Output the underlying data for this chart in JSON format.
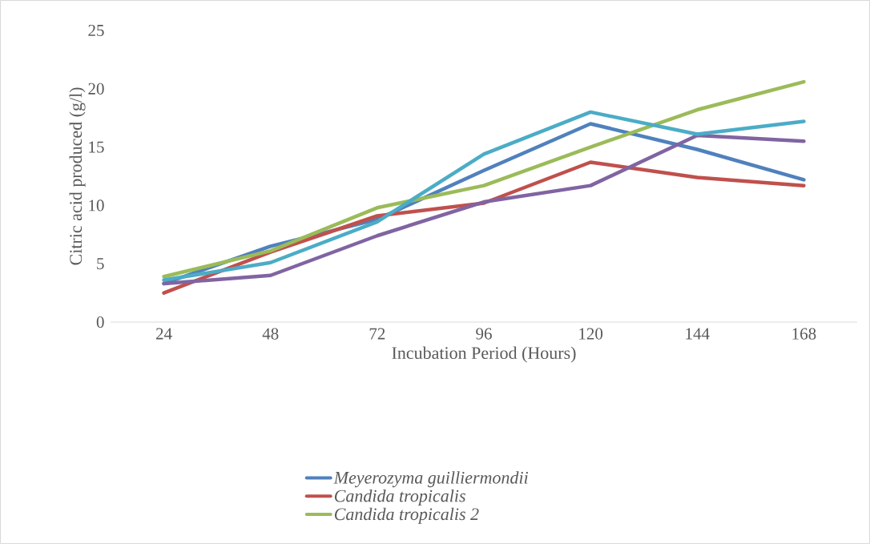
{
  "chart_data": {
    "type": "line",
    "xlabel": "Incubation Period (Hours)",
    "ylabel": "Citric acid produced (g/l)",
    "categories": [
      "24",
      "48",
      "72",
      "96",
      "120",
      "144",
      "168"
    ],
    "series": [
      {
        "name": "Meyerozyma guilliermondii",
        "color": "#4f81bd",
        "values": [
          3.3,
          6.5,
          8.8,
          13.0,
          17.0,
          14.8,
          12.2
        ]
      },
      {
        "name": "Candida tropicalis",
        "color": "#c0504d",
        "values": [
          2.5,
          6.0,
          9.1,
          10.2,
          13.7,
          12.4,
          11.7
        ]
      },
      {
        "name": "Candida tropicalis 2",
        "color": "#9bbb59",
        "values": [
          3.9,
          6.1,
          9.8,
          11.7,
          15.0,
          18.2,
          20.6
        ]
      },
      {
        "color": "#8064a2",
        "values": [
          3.3,
          4.0,
          7.4,
          10.3,
          11.7,
          16.0,
          15.5
        ]
      },
      {
        "color": "#4bacc6",
        "values": [
          3.6,
          5.1,
          8.6,
          14.4,
          18.0,
          16.1,
          17.2
        ]
      }
    ],
    "ylim": [
      0,
      25
    ],
    "yticks": [
      0,
      5,
      10,
      15,
      20,
      25
    ],
    "grid": false,
    "legend": "bottom",
    "marker": "none",
    "line_style": "solid"
  }
}
